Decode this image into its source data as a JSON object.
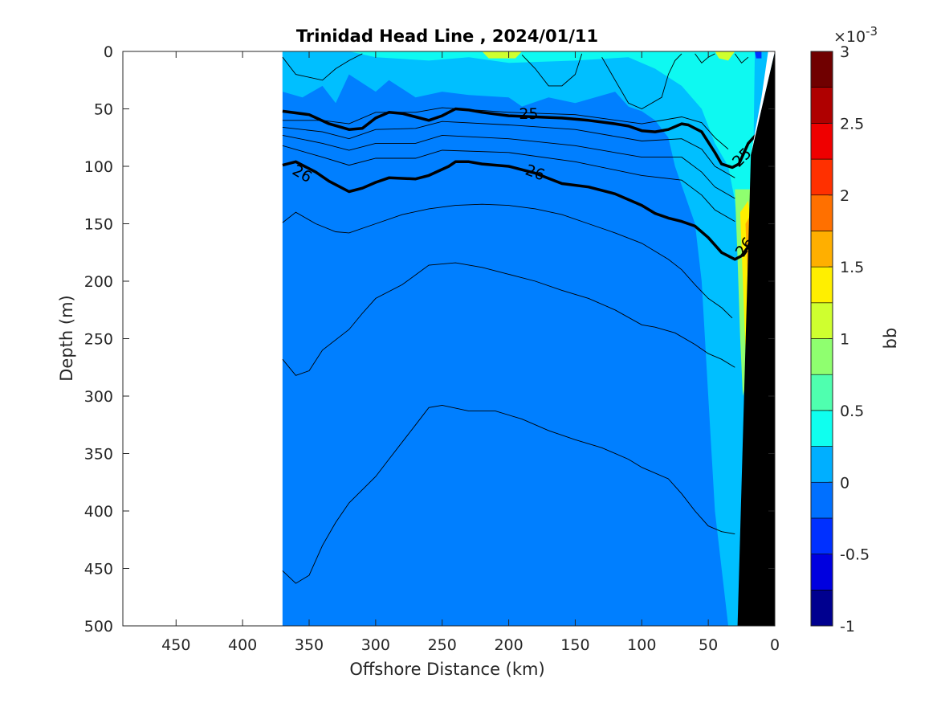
{
  "chart_data": {
    "type": "contourf",
    "title": "Trinidad Head Line , 2024/01/11",
    "xlabel": "Offshore Distance (km)",
    "ylabel": "Depth (m)",
    "xlim": [
      490,
      0
    ],
    "ylim": [
      0,
      500
    ],
    "x_reversed": true,
    "y_reversed": true,
    "xticks": [
      450,
      400,
      350,
      300,
      250,
      200,
      150,
      100,
      50,
      0
    ],
    "xtick_labels": [
      "450",
      "400",
      "350",
      "300",
      "250",
      "200",
      "150",
      "100",
      "50",
      "0"
    ],
    "yticks": [
      0,
      50,
      100,
      150,
      200,
      250,
      300,
      350,
      400,
      450,
      500
    ],
    "ytick_labels": [
      "0",
      "50",
      "100",
      "150",
      "200",
      "250",
      "300",
      "350",
      "400",
      "450",
      "500"
    ],
    "data_x_extent": [
      370,
      0
    ],
    "colorbar": {
      "label": "bb",
      "exponent_label": "×10",
      "exponent_power": "-3",
      "range": [
        -1,
        3
      ],
      "ticks": [
        -1,
        -0.5,
        0,
        0.5,
        1,
        1.5,
        2,
        2.5,
        3
      ],
      "tick_labels": [
        "-1",
        "-0.5",
        "0",
        "0.5",
        "1",
        "1.5",
        "2",
        "2.5",
        "3"
      ],
      "levels": [
        -1,
        -0.75,
        -0.5,
        -0.25,
        0,
        0.25,
        0.5,
        0.75,
        1,
        1.25,
        1.5,
        1.75,
        2,
        2.25,
        2.5,
        2.75,
        3
      ],
      "colors": [
        "#00008f",
        "#0000df",
        "#0030ff",
        "#0070ff",
        "#00afff",
        "#0fffef",
        "#4fffaf",
        "#8fff6f",
        "#cfff2f",
        "#ffef00",
        "#ffaf00",
        "#ff7000",
        "#ff3000",
        "#ef0000",
        "#af0000",
        "#700000"
      ]
    },
    "background_value_color": "#007fff",
    "surface_band_color": "#00bfff",
    "bathymetry_color": "#000000",
    "bathymetry": [
      [
        0,
        0
      ],
      [
        0,
        500
      ],
      [
        28,
        500
      ],
      [
        18,
        90
      ],
      [
        0,
        0
      ]
    ],
    "isopycnals_bold": [
      {
        "label": "25",
        "points": [
          [
            370,
            52
          ],
          [
            350,
            55
          ],
          [
            335,
            63
          ],
          [
            320,
            68
          ],
          [
            310,
            67
          ],
          [
            300,
            58
          ],
          [
            290,
            53
          ],
          [
            280,
            54
          ],
          [
            270,
            57
          ],
          [
            260,
            60
          ],
          [
            250,
            56
          ],
          [
            240,
            50
          ],
          [
            230,
            51
          ],
          [
            220,
            53
          ],
          [
            200,
            56
          ],
          [
            180,
            57
          ],
          [
            160,
            58
          ],
          [
            140,
            60
          ],
          [
            120,
            63
          ],
          [
            110,
            65
          ],
          [
            100,
            69
          ],
          [
            90,
            70
          ],
          [
            80,
            68
          ],
          [
            70,
            63
          ],
          [
            65,
            64
          ],
          [
            55,
            70
          ],
          [
            45,
            88
          ],
          [
            40,
            98
          ],
          [
            32,
            101
          ],
          [
            27,
            98
          ],
          [
            20,
            80
          ],
          [
            12,
            70
          ]
        ]
      },
      {
        "label": "26",
        "points": [
          [
            370,
            99
          ],
          [
            360,
            96
          ],
          [
            345,
            105
          ],
          [
            335,
            113
          ],
          [
            320,
            122
          ],
          [
            310,
            119
          ],
          [
            300,
            114
          ],
          [
            290,
            110
          ],
          [
            270,
            111
          ],
          [
            260,
            108
          ],
          [
            245,
            100
          ],
          [
            240,
            96
          ],
          [
            230,
            96
          ],
          [
            220,
            98
          ],
          [
            200,
            100
          ],
          [
            180,
            106
          ],
          [
            160,
            115
          ],
          [
            140,
            118
          ],
          [
            120,
            124
          ],
          [
            100,
            134
          ],
          [
            90,
            141
          ],
          [
            80,
            145
          ],
          [
            70,
            148
          ],
          [
            60,
            152
          ],
          [
            50,
            162
          ],
          [
            40,
            175
          ],
          [
            30,
            181
          ],
          [
            25,
            178
          ],
          [
            20,
            170
          ],
          [
            15,
            155
          ]
        ]
      }
    ],
    "isopycnals_thin": [
      [
        [
          370,
          60
        ],
        [
          340,
          60
        ],
        [
          320,
          63
        ],
        [
          300,
          53
        ],
        [
          270,
          53
        ],
        [
          250,
          49
        ],
        [
          200,
          53
        ],
        [
          150,
          55
        ],
        [
          100,
          63
        ],
        [
          70,
          57
        ],
        [
          55,
          62
        ],
        [
          45,
          75
        ],
        [
          35,
          85
        ]
      ],
      [
        [
          370,
          66
        ],
        [
          340,
          70
        ],
        [
          320,
          76
        ],
        [
          300,
          68
        ],
        [
          270,
          67
        ],
        [
          250,
          61
        ],
        [
          200,
          64
        ],
        [
          150,
          68
        ],
        [
          100,
          78
        ],
        [
          70,
          76
        ],
        [
          55,
          85
        ],
        [
          45,
          100
        ],
        [
          30,
          110
        ]
      ],
      [
        [
          370,
          73
        ],
        [
          340,
          80
        ],
        [
          320,
          86
        ],
        [
          300,
          80
        ],
        [
          270,
          80
        ],
        [
          250,
          73
        ],
        [
          200,
          76
        ],
        [
          150,
          82
        ],
        [
          100,
          92
        ],
        [
          70,
          92
        ],
        [
          55,
          105
        ],
        [
          45,
          118
        ],
        [
          30,
          128
        ]
      ],
      [
        [
          370,
          82
        ],
        [
          340,
          92
        ],
        [
          320,
          99
        ],
        [
          300,
          93
        ],
        [
          270,
          93
        ],
        [
          250,
          86
        ],
        [
          200,
          88
        ],
        [
          150,
          96
        ],
        [
          100,
          108
        ],
        [
          70,
          112
        ],
        [
          55,
          125
        ],
        [
          45,
          138
        ],
        [
          30,
          148
        ]
      ],
      [
        [
          370,
          149
        ],
        [
          360,
          140
        ],
        [
          345,
          150
        ],
        [
          330,
          157
        ],
        [
          320,
          158
        ],
        [
          300,
          150
        ],
        [
          280,
          142
        ],
        [
          260,
          137
        ],
        [
          240,
          134
        ],
        [
          220,
          133
        ],
        [
          200,
          134
        ],
        [
          180,
          137
        ],
        [
          160,
          142
        ],
        [
          140,
          150
        ],
        [
          120,
          158
        ],
        [
          100,
          167
        ],
        [
          80,
          181
        ],
        [
          70,
          190
        ],
        [
          60,
          203
        ],
        [
          50,
          215
        ],
        [
          40,
          223
        ],
        [
          32,
          232
        ]
      ],
      [
        [
          370,
          268
        ],
        [
          360,
          282
        ],
        [
          350,
          278
        ],
        [
          340,
          260
        ],
        [
          320,
          242
        ],
        [
          310,
          228
        ],
        [
          300,
          215
        ],
        [
          280,
          203
        ],
        [
          260,
          186
        ],
        [
          240,
          184
        ],
        [
          220,
          188
        ],
        [
          200,
          194
        ],
        [
          180,
          200
        ],
        [
          160,
          208
        ],
        [
          140,
          215
        ],
        [
          120,
          225
        ],
        [
          100,
          238
        ],
        [
          90,
          240
        ],
        [
          75,
          245
        ],
        [
          60,
          255
        ],
        [
          50,
          263
        ],
        [
          40,
          268
        ],
        [
          30,
          275
        ]
      ],
      [
        [
          370,
          452
        ],
        [
          360,
          463
        ],
        [
          350,
          456
        ],
        [
          340,
          430
        ],
        [
          330,
          410
        ],
        [
          320,
          393
        ],
        [
          300,
          370
        ],
        [
          290,
          355
        ],
        [
          280,
          340
        ],
        [
          270,
          325
        ],
        [
          260,
          310
        ],
        [
          250,
          308
        ],
        [
          230,
          313
        ],
        [
          210,
          313
        ],
        [
          190,
          320
        ],
        [
          170,
          330
        ],
        [
          150,
          338
        ],
        [
          130,
          345
        ],
        [
          110,
          355
        ],
        [
          100,
          362
        ],
        [
          80,
          372
        ],
        [
          70,
          385
        ],
        [
          60,
          400
        ],
        [
          50,
          413
        ],
        [
          40,
          418
        ],
        [
          30,
          420
        ]
      ],
      [
        [
          370,
          5
        ],
        [
          360,
          20
        ],
        [
          340,
          25
        ],
        [
          330,
          15
        ],
        [
          320,
          8
        ],
        [
          310,
          2
        ]
      ],
      [
        [
          130,
          5
        ],
        [
          120,
          25
        ],
        [
          110,
          45
        ],
        [
          100,
          50
        ],
        [
          85,
          40
        ],
        [
          80,
          20
        ],
        [
          75,
          8
        ],
        [
          70,
          2
        ]
      ],
      [
        [
          190,
          3
        ],
        [
          180,
          15
        ],
        [
          170,
          30
        ],
        [
          160,
          30
        ],
        [
          150,
          20
        ],
        [
          145,
          2
        ]
      ],
      [
        [
          60,
          2
        ],
        [
          55,
          10
        ],
        [
          50,
          5
        ],
        [
          45,
          2
        ]
      ],
      [
        [
          30,
          2
        ],
        [
          25,
          10
        ],
        [
          20,
          5
        ]
      ]
    ]
  }
}
